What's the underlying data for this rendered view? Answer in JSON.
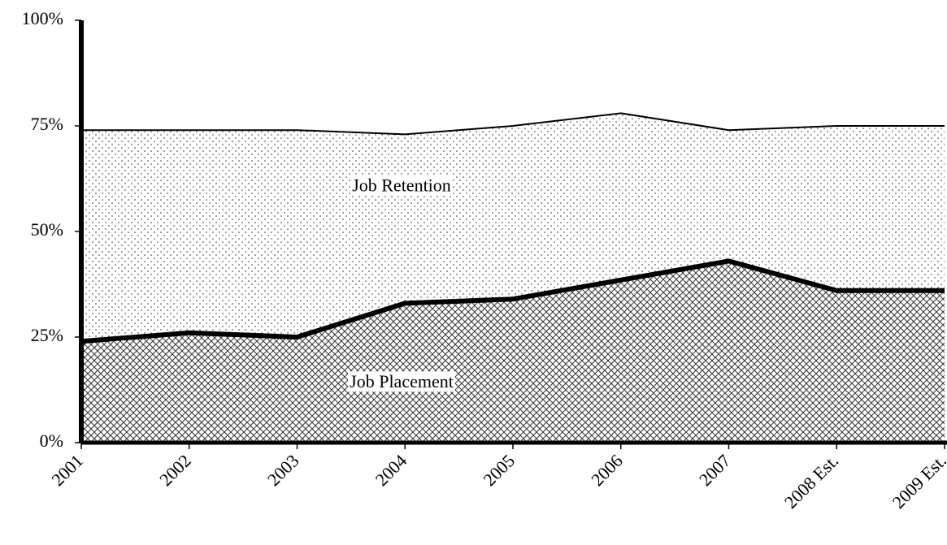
{
  "chart_data": {
    "type": "stacked_area",
    "categories": [
      "2001",
      "2002",
      "2003",
      "2004",
      "2005",
      "2006",
      "2007",
      "2008 Est.",
      "2009 Est."
    ],
    "series": [
      {
        "name": "Job Placement",
        "color": "#000000",
        "values": [
          24,
          26,
          25,
          33,
          34,
          38.5,
          43,
          36,
          36
        ]
      },
      {
        "name": "Job Retention",
        "color": "#000000",
        "values": [
          50,
          48,
          49,
          40,
          41,
          39.5,
          31,
          39,
          39
        ]
      }
    ],
    "ylim": [
      0,
      100
    ],
    "yticks": [
      {
        "value": 0,
        "label": "0%"
      },
      {
        "value": 25,
        "label": "25%"
      },
      {
        "value": 50,
        "label": "50%"
      },
      {
        "value": 75,
        "label": "75%"
      },
      {
        "value": 100,
        "label": "100%"
      }
    ],
    "grid": false
  }
}
